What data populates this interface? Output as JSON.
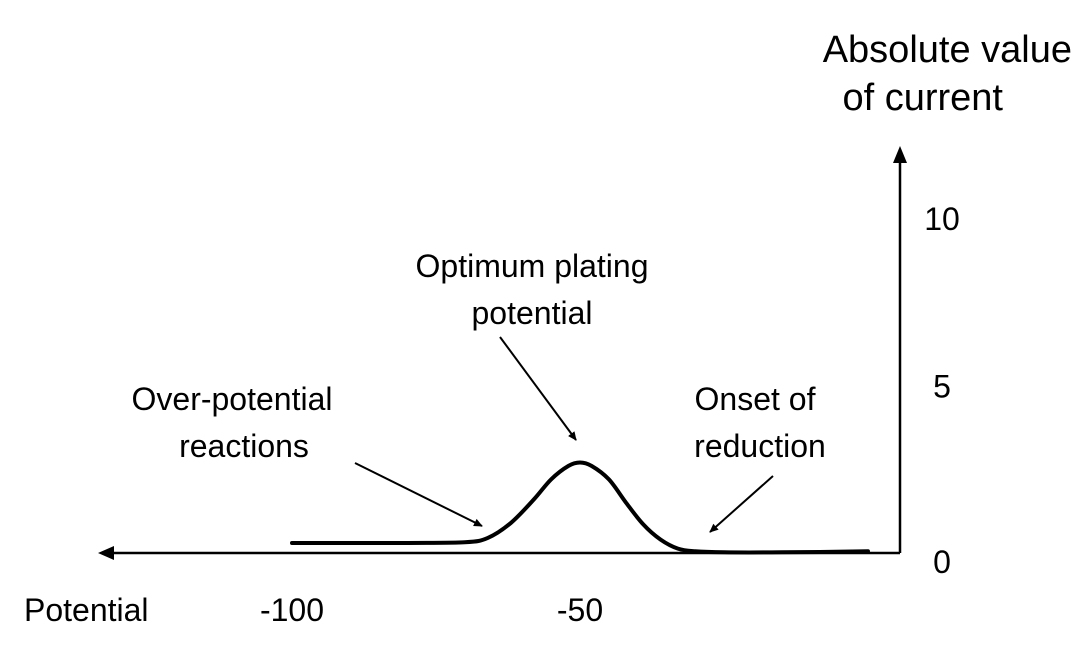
{
  "chart_data": {
    "type": "line",
    "xlabel": "Potential",
    "ylabel": [
      "Absolute value",
      "of current"
    ],
    "x_ticks": [
      {
        "value": -100,
        "label": "-100"
      },
      {
        "value": -50,
        "label": "-50"
      }
    ],
    "y_ticks": [
      {
        "value": 0,
        "label": "0"
      },
      {
        "value": 5,
        "label": "5"
      },
      {
        "value": 10,
        "label": "10"
      }
    ],
    "x_axis_direction": "increasingly negative to the left",
    "xlim": [
      -110,
      0
    ],
    "ylim": [
      0,
      11
    ],
    "grid": false,
    "series": [
      {
        "points": [
          [
            -100,
            0.3
          ],
          [
            -90,
            0.3
          ],
          [
            -80,
            0.3
          ],
          [
            -70,
            0.32
          ],
          [
            -66,
            0.45
          ],
          [
            -62,
            0.9
          ],
          [
            -58,
            1.6
          ],
          [
            -55,
            2.2
          ],
          [
            -52,
            2.6
          ],
          [
            -50,
            2.7
          ],
          [
            -48,
            2.6
          ],
          [
            -45,
            2.2
          ],
          [
            -42,
            1.5
          ],
          [
            -39,
            0.85
          ],
          [
            -36,
            0.4
          ],
          [
            -33,
            0.13
          ],
          [
            -30,
            0.05
          ],
          [
            -25,
            0.02
          ],
          [
            -15,
            0.02
          ],
          [
            0,
            0.05
          ]
        ]
      }
    ],
    "annotations": [
      {
        "lines": [
          "Optimum plating",
          "potential"
        ]
      },
      {
        "lines": [
          "Over-potential",
          "reactions"
        ]
      },
      {
        "lines": [
          "Onset of",
          "reduction"
        ]
      }
    ]
  }
}
